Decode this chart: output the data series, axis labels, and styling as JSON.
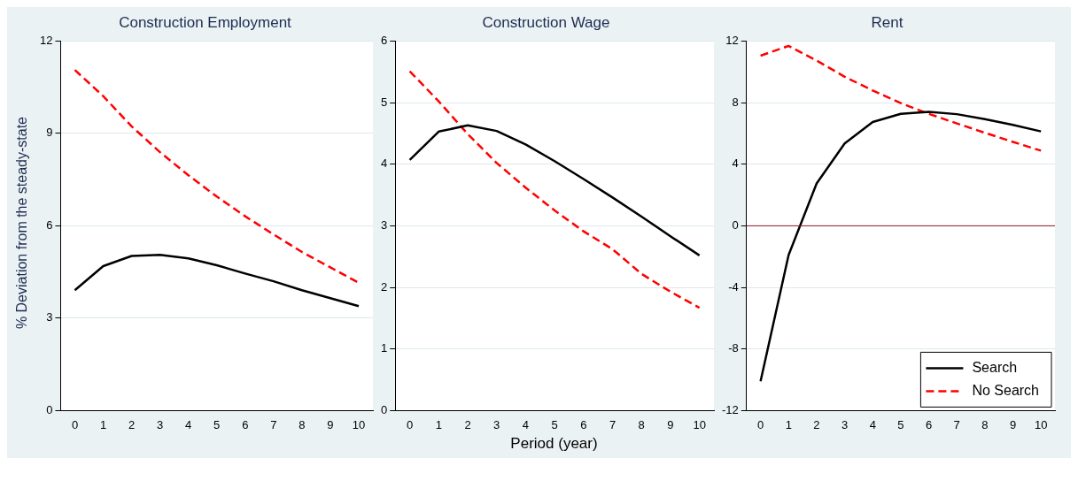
{
  "chart_data": [
    {
      "type": "line",
      "title": "Construction Employment",
      "ylabel": "% Deviation from the steady-state",
      "categories": [
        "0",
        "1",
        "2",
        "3",
        "4",
        "5",
        "6",
        "7",
        "8",
        "9",
        "10"
      ],
      "ylim": [
        0,
        12
      ],
      "yticks": [
        0,
        3,
        6,
        9,
        12
      ],
      "grid": "y",
      "legend": false,
      "series": [
        {
          "color": "#000000",
          "line_style": "solid",
          "values": [
            3.91,
            4.69,
            5.02,
            5.06,
            4.94,
            4.72,
            4.45,
            4.2,
            3.91,
            3.65,
            3.39
          ]
        },
        {
          "color": "#ff0000",
          "line_style": "dashed",
          "values": [
            11.06,
            10.21,
            9.23,
            8.39,
            7.64,
            6.95,
            6.31,
            5.72,
            5.15,
            4.65,
            4.15
          ]
        }
      ]
    },
    {
      "type": "line",
      "title": "Construction Wage",
      "xlabel": "Period (year)",
      "categories": [
        "0",
        "1",
        "2",
        "3",
        "4",
        "5",
        "6",
        "7",
        "8",
        "9",
        "10"
      ],
      "ylim": [
        0,
        6
      ],
      "yticks": [
        0,
        1,
        2,
        3,
        4,
        5,
        6
      ],
      "grid": "y",
      "legend": false,
      "series": [
        {
          "color": "#000000",
          "line_style": "solid",
          "values": [
            4.07,
            4.53,
            4.63,
            4.54,
            4.32,
            4.05,
            3.76,
            3.46,
            3.15,
            2.83,
            2.52
          ]
        },
        {
          "color": "#ff0000",
          "line_style": "dashed",
          "values": [
            5.51,
            5.02,
            4.49,
            4.02,
            3.62,
            3.25,
            2.91,
            2.62,
            2.22,
            1.93,
            1.67
          ]
        }
      ]
    },
    {
      "type": "line",
      "title": "Rent",
      "categories": [
        "0",
        "1",
        "2",
        "3",
        "4",
        "5",
        "6",
        "7",
        "8",
        "9",
        "10"
      ],
      "ylim": [
        -12,
        12
      ],
      "yticks": [
        -12,
        -8,
        -4,
        0,
        4,
        8,
        12
      ],
      "grid": "y",
      "legend": "bottom right",
      "ref_lines": [
        {
          "axis": "y",
          "value": 0,
          "color": "#8b1a2b"
        }
      ],
      "series": [
        {
          "name": "Search",
          "color": "#000000",
          "line_style": "solid",
          "values": [
            -10.1,
            -1.9,
            2.75,
            5.35,
            6.74,
            7.27,
            7.4,
            7.25,
            6.93,
            6.55,
            6.13
          ]
        },
        {
          "name": "No Search",
          "color": "#ff0000",
          "line_style": "dashed",
          "values": [
            11.05,
            11.68,
            10.73,
            9.68,
            8.79,
            7.97,
            7.27,
            6.65,
            6.04,
            5.45,
            4.88
          ]
        }
      ]
    }
  ]
}
